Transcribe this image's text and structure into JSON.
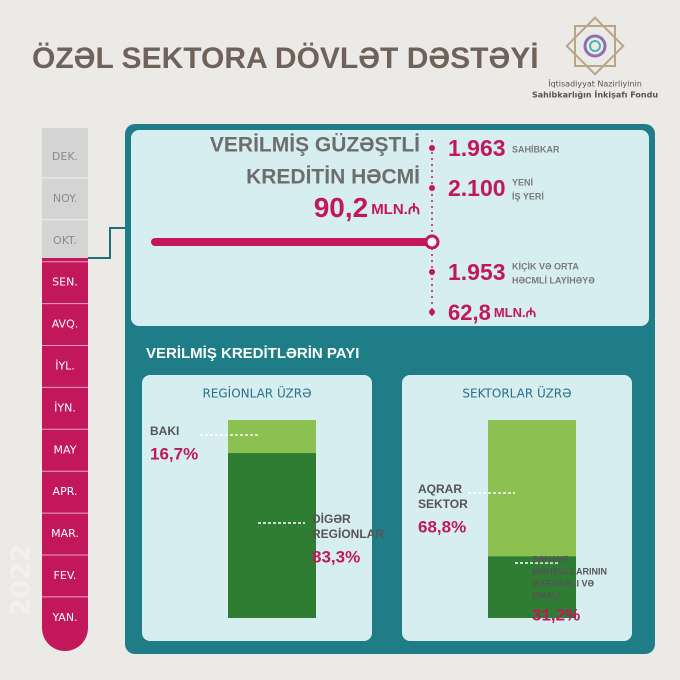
{
  "header": {
    "title": "ÖZƏL SEKTORA DÖVLƏT DƏSTƏYİ",
    "logo_lines": [
      "İqtisadiyyat Nazirliyinin",
      "Sahibkarlığın İnkişafı Fondu"
    ]
  },
  "timeline": {
    "months": [
      "DEK.",
      "NOY.",
      "OKT.",
      "SEN.",
      "AVQ.",
      "İYL.",
      "İYN.",
      "MAY",
      "APR.",
      "MAR.",
      "FEV.",
      "YAN."
    ],
    "year": "2022"
  },
  "loans": {
    "heading": [
      "VERİLMİŞ GÜZƏŞTLİ",
      "KREDİTİN HƏCMİ"
    ],
    "amount": "90,2",
    "unit": "MLN.₼",
    "stats": [
      {
        "value": "1.963",
        "label": [
          "SAHİBKAR"
        ]
      },
      {
        "value": "2.100",
        "label": [
          "YENİ",
          "İŞ YERİ"
        ]
      },
      {
        "value": "1.953",
        "label": [
          "KİÇİK VƏ ORTA",
          "HƏCMLİ LAYİHƏYƏ"
        ]
      },
      {
        "value": "62,8",
        "label": [
          "MLN.₼"
        ]
      }
    ]
  },
  "shares": {
    "title": "VERİLMİŞ KREDİTLƏRİN PAYI",
    "panels": [
      {
        "title": "REGİONLAR ÜZRƏ",
        "segments": [
          {
            "name": [
              "BAKI"
            ],
            "value": 16.7,
            "value_label": "16,7%",
            "color": "#8cc152"
          },
          {
            "name": [
              "DİGƏR",
              "REGİONLAR"
            ],
            "value": 83.3,
            "value_label": "83,3%",
            "color": "#2e7d32"
          }
        ]
      },
      {
        "title": "SEKTORLAR ÜZRƏ",
        "segments": [
          {
            "name": [
              "AQRAR",
              "SEKTOR"
            ],
            "value": 68.8,
            "value_label": "68,8%",
            "color": "#8cc152"
          },
          {
            "name": [
              "SƏNAYE",
              "MƏHSULLARININ",
              "İSTEHSALI VƏ",
              "EMALI"
            ],
            "value": 31.2,
            "value_label": "31,2%",
            "color": "#2e7d32"
          }
        ]
      }
    ]
  }
}
